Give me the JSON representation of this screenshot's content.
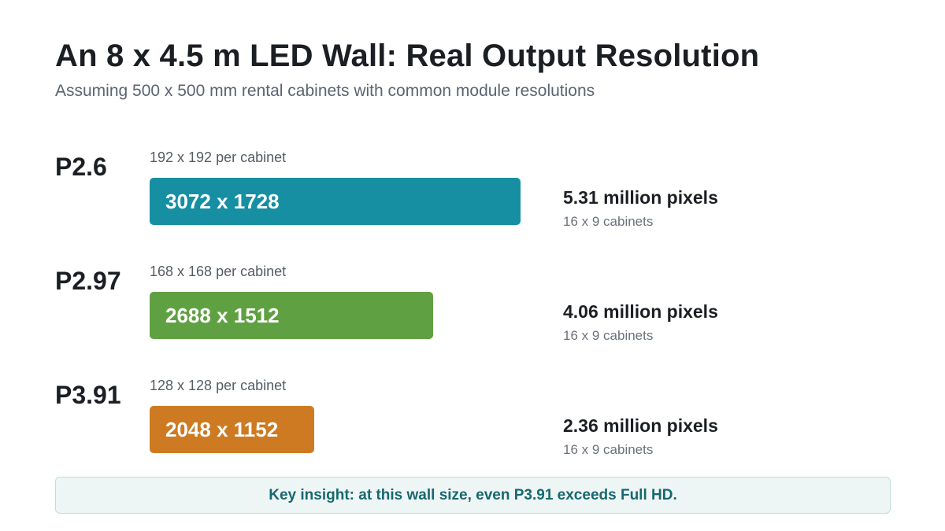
{
  "title": "An 8 x 4.5 m LED Wall: Real Output Resolution",
  "subtitle": "Assuming 500 x 500 mm rental cabinets with common module resolutions",
  "chart_data": {
    "type": "bar",
    "orientation": "horizontal",
    "unit": "million pixels",
    "categories": [
      "P2.6",
      "P2.97",
      "P3.91"
    ],
    "values": [
      5.31,
      4.06,
      2.36
    ],
    "rows": [
      {
        "pitch": "P2.6",
        "per_cabinet": "192 x 192 per cabinet",
        "resolution": "3072 x 1728",
        "megapixels": 5.31,
        "megapixels_label": "5.31 million pixels",
        "cabinets": "16 x 9 cabinets",
        "color": "#168fa3"
      },
      {
        "pitch": "P2.97",
        "per_cabinet": "168 x 168 per cabinet",
        "resolution": "2688 x 1512",
        "megapixels": 4.06,
        "megapixels_label": "4.06 million pixels",
        "cabinets": "16 x 9 cabinets",
        "color": "#5fa142"
      },
      {
        "pitch": "P3.91",
        "per_cabinet": "128 x 128 per cabinet",
        "resolution": "2048 x 1152",
        "megapixels": 2.36,
        "megapixels_label": "2.36 million pixels",
        "cabinets": "16 x 9 cabinets",
        "color": "#cd7a22"
      }
    ]
  },
  "insight": "Key insight: at this wall size, even P3.91 exceeds Full HD."
}
